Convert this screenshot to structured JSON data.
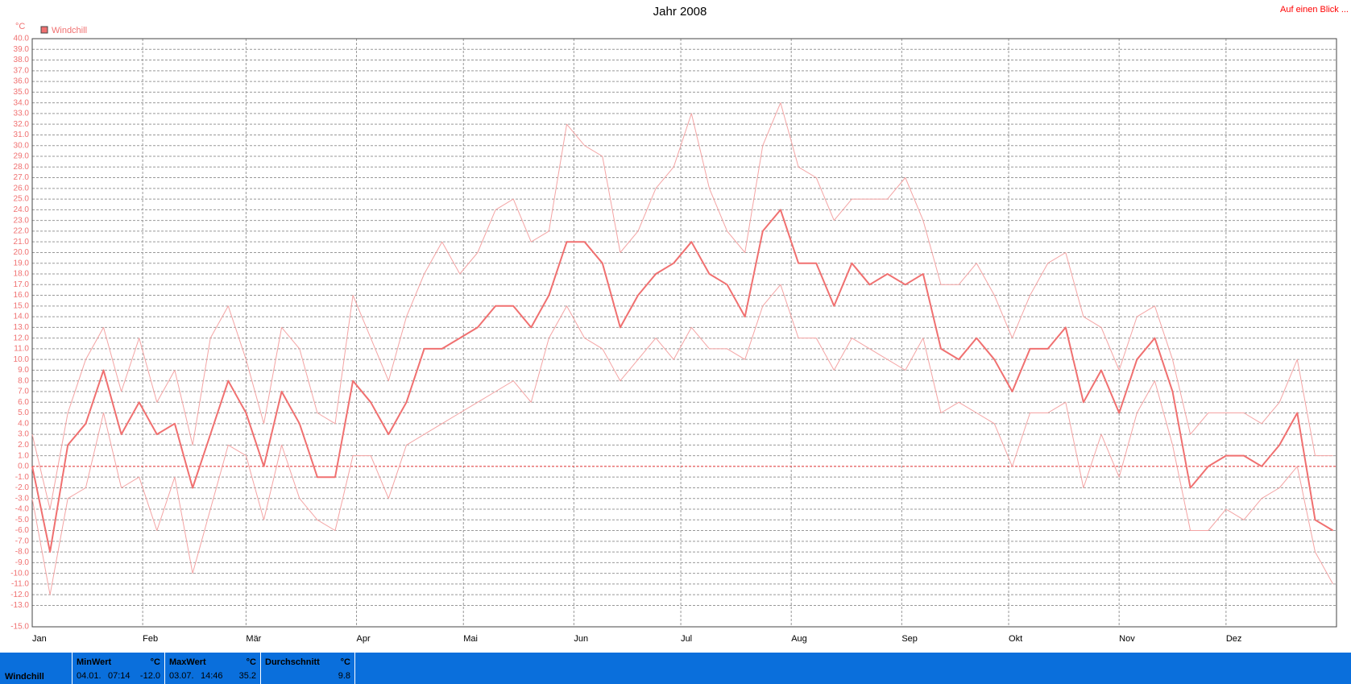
{
  "chart_data": {
    "type": "line",
    "title": "Jahr 2008",
    "y_unit": "°C",
    "legend": "Windchill",
    "link": "Auf einen Blick ...",
    "x": [
      0,
      5,
      10,
      15,
      20,
      25,
      30,
      35,
      40,
      45,
      50,
      55,
      60,
      65,
      70,
      75,
      80,
      85,
      90,
      95,
      100,
      105,
      110,
      115,
      120,
      125,
      130,
      135,
      140,
      145,
      150,
      155,
      160,
      165,
      170,
      175,
      180,
      185,
      190,
      195,
      200,
      205,
      210,
      215,
      220,
      225,
      230,
      235,
      240,
      245,
      250,
      255,
      260,
      265,
      270,
      275,
      280,
      285,
      290,
      295,
      300,
      305,
      310,
      315,
      320,
      325,
      330,
      335,
      340,
      345,
      350,
      355,
      360,
      365
    ],
    "series": [
      {
        "name": "Windchill",
        "color": "#f07070",
        "width": 2,
        "values": [
          0,
          -8,
          2,
          4,
          9,
          3,
          6,
          3,
          4,
          -2,
          3,
          8,
          5,
          0,
          7,
          4,
          -1,
          -1,
          8,
          6,
          3,
          6,
          11,
          11,
          12,
          13,
          15,
          15,
          13,
          16,
          21,
          21,
          19,
          13,
          16,
          18,
          19,
          21,
          18,
          17,
          14,
          22,
          24,
          19,
          19,
          15,
          19,
          17,
          18,
          17,
          18,
          11,
          10,
          12,
          10,
          7,
          11,
          11,
          13,
          6,
          9,
          5,
          10,
          12,
          7,
          -2,
          0,
          1,
          1,
          0,
          2,
          5,
          -5,
          -6
        ]
      },
      {
        "color": "#f4a4a4",
        "width": 1,
        "values": [
          3,
          -4,
          5,
          10,
          13,
          7,
          12,
          6,
          9,
          2,
          12,
          15,
          10,
          4,
          13,
          11,
          5,
          4,
          16,
          12,
          8,
          14,
          18,
          21,
          18,
          20,
          24,
          25,
          21,
          22,
          32,
          30,
          29,
          20,
          22,
          26,
          28,
          33,
          26,
          22,
          20,
          30,
          34,
          28,
          27,
          23,
          25,
          25,
          25,
          27,
          23,
          17,
          17,
          19,
          16,
          12,
          16,
          19,
          20,
          14,
          13,
          9,
          14,
          15,
          10,
          3,
          5,
          5,
          5,
          4,
          6,
          10,
          1,
          1
        ]
      },
      {
        "color": "#f4a4a4",
        "width": 1,
        "values": [
          -3,
          -12,
          -3,
          -2,
          5,
          -2,
          -1,
          -6,
          -1,
          -10,
          -4,
          2,
          1,
          -5,
          2,
          -3,
          -5,
          -6,
          1,
          1,
          -3,
          2,
          3,
          4,
          5,
          6,
          7,
          8,
          6,
          12,
          15,
          12,
          11,
          8,
          10,
          12,
          10,
          13,
          11,
          11,
          10,
          15,
          17,
          12,
          12,
          9,
          12,
          11,
          10,
          9,
          12,
          5,
          6,
          5,
          4,
          0,
          5,
          5,
          6,
          -2,
          3,
          -1,
          5,
          8,
          2,
          -6,
          -6,
          -4,
          -5,
          -3,
          -2,
          0,
          -8,
          -11
        ]
      }
    ],
    "xlim": [
      0,
      366
    ],
    "xticks": [
      {
        "value": 0,
        "label": "Jan"
      },
      {
        "value": 31,
        "label": "Feb"
      },
      {
        "value": 60,
        "label": "Mär"
      },
      {
        "value": 91,
        "label": "Apr"
      },
      {
        "value": 121,
        "label": "Mai"
      },
      {
        "value": 152,
        "label": "Jun"
      },
      {
        "value": 182,
        "label": "Jul"
      },
      {
        "value": 213,
        "label": "Aug"
      },
      {
        "value": 244,
        "label": "Sep"
      },
      {
        "value": 274,
        "label": "Okt"
      },
      {
        "value": 305,
        "label": "Nov"
      },
      {
        "value": 335,
        "label": "Dez"
      }
    ],
    "ylim": [
      -15,
      40
    ],
    "yticks": [
      {
        "value": 40,
        "label": "40.0"
      },
      {
        "value": 39,
        "label": "39.0"
      },
      {
        "value": 38,
        "label": "38.0"
      },
      {
        "value": 37,
        "label": "37.0"
      },
      {
        "value": 36,
        "label": "36.0"
      },
      {
        "value": 35,
        "label": "35.0"
      },
      {
        "value": 34,
        "label": "34.0"
      },
      {
        "value": 33,
        "label": "33.0"
      },
      {
        "value": 32,
        "label": "32.0"
      },
      {
        "value": 31,
        "label": "31.0"
      },
      {
        "value": 30,
        "label": "30.0"
      },
      {
        "value": 29,
        "label": "29.0"
      },
      {
        "value": 28,
        "label": "28.0"
      },
      {
        "value": 27,
        "label": "27.0"
      },
      {
        "value": 26,
        "label": "26.0"
      },
      {
        "value": 25,
        "label": "25.0"
      },
      {
        "value": 24,
        "label": "24.0"
      },
      {
        "value": 23,
        "label": "23.0"
      },
      {
        "value": 22,
        "label": "22.0"
      },
      {
        "value": 21,
        "label": "21.0"
      },
      {
        "value": 20,
        "label": "20.0"
      },
      {
        "value": 19,
        "label": "19.0"
      },
      {
        "value": 18,
        "label": "18.0"
      },
      {
        "value": 17,
        "label": "17.0"
      },
      {
        "value": 16,
        "label": "16.0"
      },
      {
        "value": 15,
        "label": "15.0"
      },
      {
        "value": 14,
        "label": "14.0"
      },
      {
        "value": 13,
        "label": "13.0"
      },
      {
        "value": 12,
        "label": "12.0"
      },
      {
        "value": 11,
        "label": "11.0"
      },
      {
        "value": 10,
        "label": "10.0"
      },
      {
        "value": 9,
        "label": "9.0"
      },
      {
        "value": 8,
        "label": "8.0"
      },
      {
        "value": 7,
        "label": "7.0"
      },
      {
        "value": 6,
        "label": "6.0"
      },
      {
        "value": 5,
        "label": "5.0"
      },
      {
        "value": 4,
        "label": "4.0"
      },
      {
        "value": 3,
        "label": "3.0"
      },
      {
        "value": 2,
        "label": "2.0"
      },
      {
        "value": 1,
        "label": "1.0"
      },
      {
        "value": 0,
        "label": "0.0"
      },
      {
        "value": -1,
        "label": "-1.0"
      },
      {
        "value": -2,
        "label": "-2.0"
      },
      {
        "value": -3,
        "label": "-3.0"
      },
      {
        "value": -4,
        "label": "-4.0"
      },
      {
        "value": -5,
        "label": "-5.0"
      },
      {
        "value": -6,
        "label": "-6.0"
      },
      {
        "value": -7,
        "label": "-7.0"
      },
      {
        "value": -8,
        "label": "-8.0"
      },
      {
        "value": -9,
        "label": "-9.0"
      },
      {
        "value": -10,
        "label": "-10.0"
      },
      {
        "value": -11,
        "label": "-11.0"
      },
      {
        "value": -12,
        "label": "-12.0"
      },
      {
        "value": -13,
        "label": "-13.0"
      },
      {
        "value": -15,
        "label": "-15.0"
      }
    ],
    "grid": true
  },
  "summary": {
    "label": "Windchill",
    "min": {
      "title": "MinWert",
      "unit": "°C",
      "date": "04.01.",
      "time": "07:14",
      "value": "-12.0"
    },
    "max": {
      "title": "MaxWert",
      "unit": "°C",
      "date": "03.07.",
      "time": "14:46",
      "value": "35.2"
    },
    "avg": {
      "title": "Durchschnitt",
      "unit": "°C",
      "value": "9.8"
    }
  }
}
